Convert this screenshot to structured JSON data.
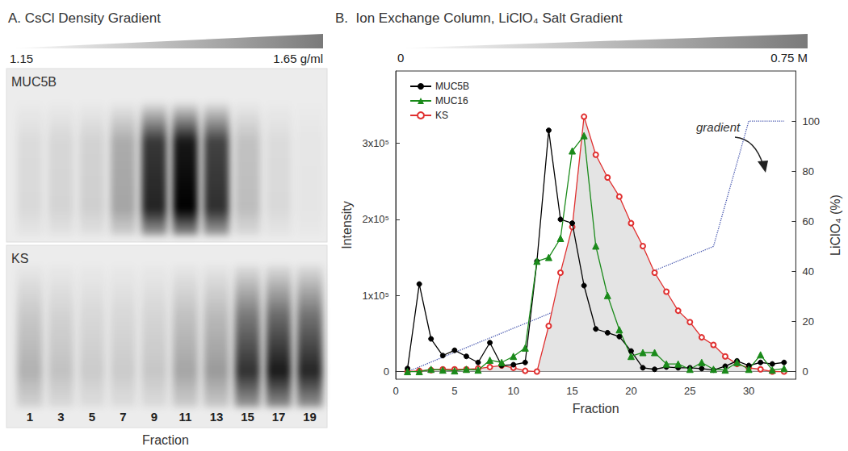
{
  "panel_a": {
    "title": "A.  CsCl Density Gradient",
    "gradient_start": "1.15",
    "gradient_end": "1.65 g/ml",
    "blots": [
      {
        "label": "MUC5B",
        "relative_intensity": [
          0.08,
          0.1,
          0.12,
          0.3,
          0.85,
          1.0,
          0.8,
          0.2,
          0.08,
          0.03
        ]
      },
      {
        "label": "KS",
        "relative_intensity": [
          0.25,
          0.18,
          0.14,
          0.14,
          0.16,
          0.3,
          0.35,
          0.8,
          0.9,
          0.85
        ]
      }
    ],
    "lanes": [
      "1",
      "3",
      "5",
      "7",
      "9",
      "11",
      "13",
      "15",
      "17",
      "19"
    ],
    "x_label": "Fraction"
  },
  "chart_data": {
    "type": "line",
    "title": "B.  Ion Exchange Column, LiClO₄ Salt Gradient",
    "gradient_start": "0",
    "gradient_end": "0.75 M",
    "x_label": "Fraction",
    "y_label": "Intensity",
    "y2_label": "LiClO₄ (%)",
    "x": [
      1,
      2,
      3,
      4,
      5,
      6,
      7,
      8,
      9,
      10,
      11,
      12,
      13,
      14,
      15,
      16,
      17,
      18,
      19,
      20,
      21,
      22,
      23,
      24,
      25,
      26,
      27,
      28,
      29,
      30,
      31,
      32,
      33
    ],
    "series": [
      {
        "name": "MUC5B",
        "color": "#000000",
        "marker": "circle",
        "type": "line",
        "values": [
          4000,
          115000,
          43000,
          21000,
          28000,
          20000,
          12000,
          38000,
          8000,
          9000,
          12000,
          145000,
          317000,
          200000,
          195000,
          113000,
          56000,
          51000,
          46000,
          27000,
          5000,
          3000,
          6000,
          5000,
          5000,
          4000,
          2000,
          7000,
          14000,
          8000,
          12000,
          10000,
          12000
        ]
      },
      {
        "name": "MUC16",
        "color": "#1a8a1a",
        "marker": "triangle",
        "type": "line",
        "values": [
          0,
          0,
          3000,
          2000,
          1000,
          3000,
          2000,
          15000,
          12000,
          20000,
          31000,
          145000,
          150000,
          175000,
          290000,
          310000,
          165000,
          100000,
          55000,
          20000,
          25000,
          25000,
          10000,
          10000,
          3000,
          12000,
          3000,
          2000,
          12000,
          3000,
          22000,
          2000,
          4000
        ]
      },
      {
        "name": "KS",
        "color": "#e03030",
        "marker": "emptyCircle",
        "type": "area",
        "values": [
          0,
          1000,
          2000,
          3000,
          3000,
          3000,
          4000,
          6000,
          8000,
          5000,
          1000,
          0,
          60000,
          130000,
          190000,
          335000,
          285000,
          255000,
          230000,
          195000,
          165000,
          130000,
          105000,
          80000,
          65000,
          45000,
          35000,
          20000,
          10000,
          5000,
          3000,
          0,
          0
        ]
      }
    ],
    "gradient": {
      "x": [
        1,
        27,
        30,
        33
      ],
      "values": [
        0,
        50,
        100,
        100
      ],
      "axis": "y2",
      "color": "#4a5ab0",
      "line_style": "dotted"
    },
    "annotations": [
      {
        "text": "gradient"
      }
    ],
    "xlim": [
      0,
      34
    ],
    "xticks": [
      0,
      5,
      10,
      15,
      20,
      25,
      30
    ],
    "ylim": [
      -10000,
      395000
    ],
    "yticks": [
      0,
      {
        "value": 100000,
        "label": "1x10⁵"
      },
      {
        "value": 200000,
        "label": "2x10⁵"
      },
      {
        "value": 300000,
        "label": "3x10⁵"
      }
    ],
    "y2lim": [
      -3,
      120
    ],
    "y2ticks": [
      0,
      20,
      40,
      60,
      80,
      100
    ],
    "legend": "upper left",
    "grid": false
  }
}
